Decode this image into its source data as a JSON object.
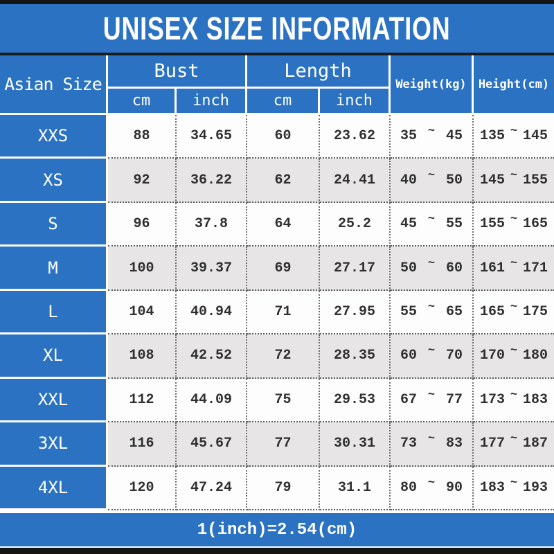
{
  "title": "UNISEX SIZE INFORMATION",
  "header": {
    "corner": "Asian Size",
    "bust": "Bust",
    "length": "Length",
    "weight": "Weight(kg)",
    "height": "Height(cm)",
    "unit_cm": "cm",
    "unit_inch": "inch",
    "range_separator": "~"
  },
  "footer": {
    "conversion_note": "1(inch)=2.54(cm)"
  },
  "colors": {
    "accent_blue": "#2b72c2",
    "stripe_gray": "#e7e5e6",
    "bar_black": "#151515",
    "text_dark": "#2f2f2f",
    "cell_white": "#fdfdfd"
  },
  "chart_data": {
    "type": "table",
    "title": "UNISEX SIZE INFORMATION",
    "columns": [
      "Asian Size",
      "Bust cm",
      "Bust inch",
      "Length cm",
      "Length inch",
      "Weight(kg)",
      "Height(cm)"
    ],
    "rows": [
      {
        "size": "XXS",
        "bust_cm": "88",
        "bust_inch": "34.65",
        "length_cm": "60",
        "length_inch": "23.62",
        "weight_min": "35",
        "weight_max": "45",
        "height_min": "135",
        "height_max": "145"
      },
      {
        "size": "XS",
        "bust_cm": "92",
        "bust_inch": "36.22",
        "length_cm": "62",
        "length_inch": "24.41",
        "weight_min": "40",
        "weight_max": "50",
        "height_min": "145",
        "height_max": "155"
      },
      {
        "size": "S",
        "bust_cm": "96",
        "bust_inch": "37.8",
        "length_cm": "64",
        "length_inch": "25.2",
        "weight_min": "45",
        "weight_max": "55",
        "height_min": "155",
        "height_max": "165"
      },
      {
        "size": "M",
        "bust_cm": "100",
        "bust_inch": "39.37",
        "length_cm": "69",
        "length_inch": "27.17",
        "weight_min": "50",
        "weight_max": "60",
        "height_min": "161",
        "height_max": "171"
      },
      {
        "size": "L",
        "bust_cm": "104",
        "bust_inch": "40.94",
        "length_cm": "71",
        "length_inch": "27.95",
        "weight_min": "55",
        "weight_max": "65",
        "height_min": "165",
        "height_max": "175"
      },
      {
        "size": "XL",
        "bust_cm": "108",
        "bust_inch": "42.52",
        "length_cm": "72",
        "length_inch": "28.35",
        "weight_min": "60",
        "weight_max": "70",
        "height_min": "170",
        "height_max": "180"
      },
      {
        "size": "XXL",
        "bust_cm": "112",
        "bust_inch": "44.09",
        "length_cm": "75",
        "length_inch": "29.53",
        "weight_min": "67",
        "weight_max": "77",
        "height_min": "173",
        "height_max": "183"
      },
      {
        "size": "3XL",
        "bust_cm": "116",
        "bust_inch": "45.67",
        "length_cm": "77",
        "length_inch": "30.31",
        "weight_min": "73",
        "weight_max": "83",
        "height_min": "177",
        "height_max": "187"
      },
      {
        "size": "4XL",
        "bust_cm": "120",
        "bust_inch": "47.24",
        "length_cm": "79",
        "length_inch": "31.1",
        "weight_min": "80",
        "weight_max": "90",
        "height_min": "183",
        "height_max": "193"
      }
    ],
    "footnote": "1(inch)=2.54(cm)"
  }
}
